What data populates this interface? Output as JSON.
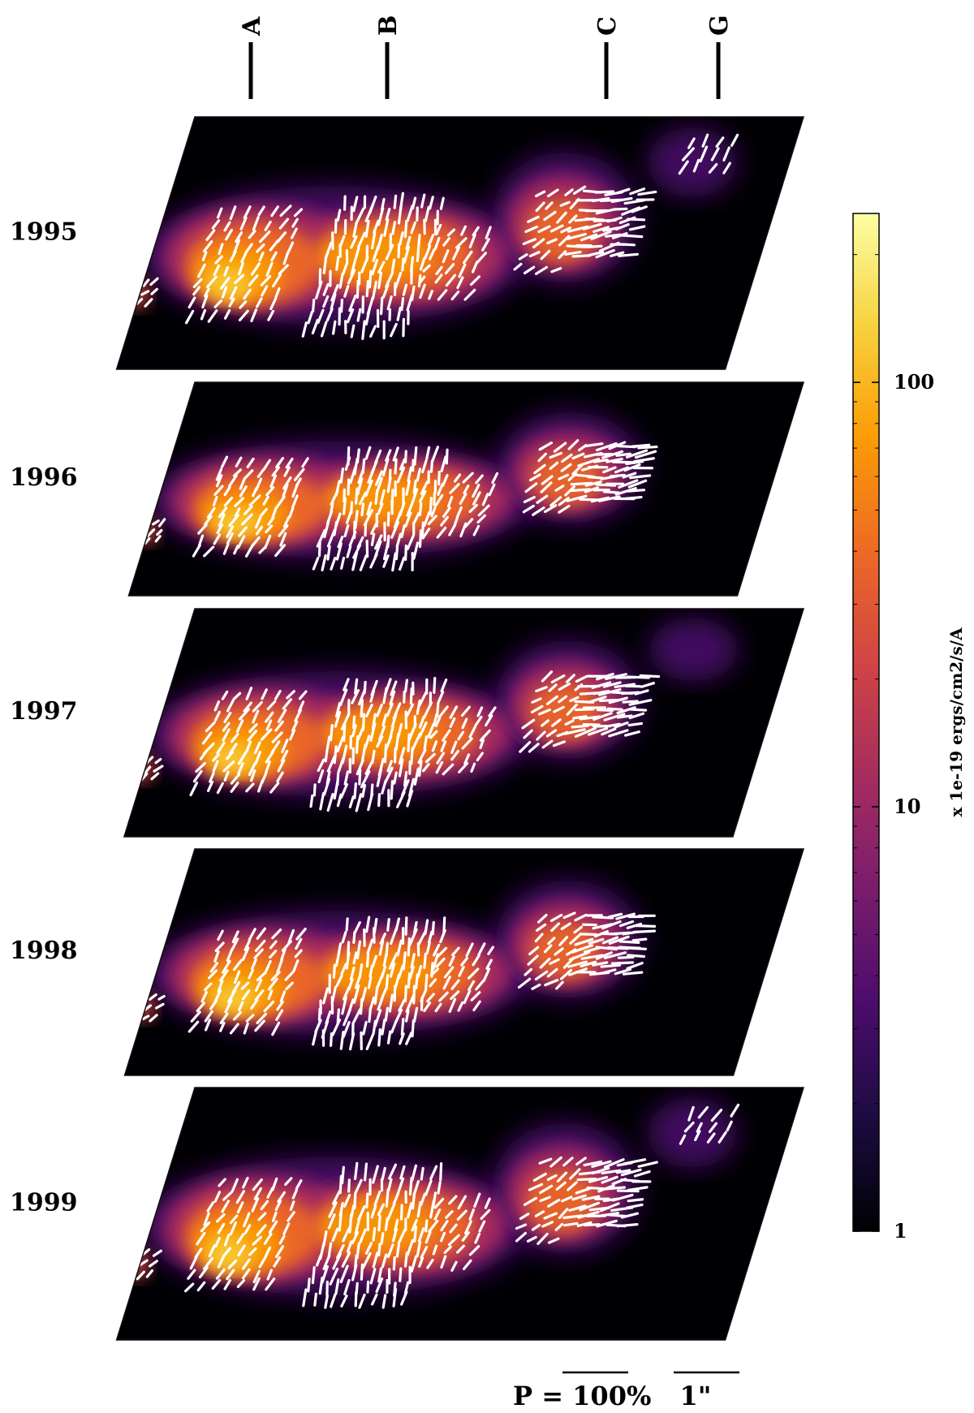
{
  "chart_data": {
    "type": "heatmap",
    "knot_labels": [
      "A",
      "B",
      "C",
      "G"
    ],
    "panels": [
      {
        "year": "1995",
        "has_g_vectors": true
      },
      {
        "year": "1996",
        "has_g_vectors": false
      },
      {
        "year": "1997",
        "has_g_vectors": false
      },
      {
        "year": "1998",
        "has_g_vectors": false
      },
      {
        "year": "1999",
        "has_g_vectors": true
      }
    ],
    "colorbar": {
      "label": "x 1e-19 ergs/cm2/s/A",
      "scale": "log",
      "range": [
        1,
        250
      ],
      "ticks": [
        {
          "value": 1,
          "label": "1"
        },
        {
          "value": 10,
          "label": "10"
        },
        {
          "value": 100,
          "label": "100"
        }
      ],
      "colormap": [
        "#000004",
        "#1b0c41",
        "#4a0c6b",
        "#781c6d",
        "#a52c60",
        "#cf4446",
        "#ed6925",
        "#fb9b06",
        "#f7d13d",
        "#fcffa4"
      ]
    },
    "vector_scale_label": "P = 100%",
    "angular_scale_label": "1\""
  }
}
